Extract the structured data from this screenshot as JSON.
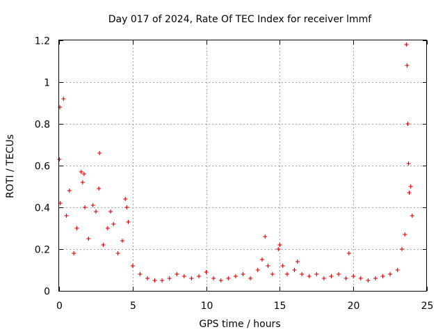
{
  "chart_data": {
    "type": "scatter",
    "title": "Day 017 of 2024, Rate Of TEC Index for receiver lmmf",
    "xlabel": "GPS time / hours",
    "ylabel": "ROTI / TECUs",
    "xlim": [
      0,
      25
    ],
    "ylim": [
      0,
      1.2
    ],
    "xticks": [
      0,
      5,
      10,
      15,
      20,
      25
    ],
    "yticks": [
      0,
      0.2,
      0.4,
      0.6,
      0.8,
      1.0,
      1.2
    ],
    "xtick_labels": [
      "0",
      "5",
      "10",
      "15",
      "20",
      "25"
    ],
    "ytick_labels": [
      "0",
      "0.2",
      "0.4",
      "0.6",
      "0.8",
      "1",
      "1.2"
    ],
    "grid": true,
    "marker": "+",
    "color": "#e00000",
    "series": [
      {
        "name": "ROTI",
        "x": [
          0.02,
          0.05,
          0.08,
          0.3,
          0.5,
          0.7,
          1.0,
          1.2,
          1.5,
          1.6,
          1.7,
          1.75,
          2.0,
          2.3,
          2.5,
          2.7,
          2.75,
          3.0,
          3.3,
          3.5,
          3.7,
          4.0,
          4.3,
          4.5,
          4.6,
          4.7,
          5.0,
          5.5,
          6.0,
          6.5,
          7.0,
          7.5,
          8.0,
          8.5,
          9.0,
          9.5,
          10.0,
          10.5,
          11.0,
          11.5,
          12.0,
          12.5,
          13.0,
          13.5,
          13.8,
          14.0,
          14.2,
          14.5,
          14.9,
          15.0,
          15.2,
          15.5,
          16.0,
          16.2,
          16.5,
          17.0,
          17.5,
          18.0,
          18.5,
          19.0,
          19.5,
          19.7,
          20.0,
          20.5,
          21.0,
          21.5,
          22.0,
          22.5,
          23.0,
          23.3,
          23.5,
          23.6,
          23.65,
          23.7,
          23.75,
          23.8,
          23.9,
          24.0
        ],
        "y": [
          0.63,
          0.88,
          0.42,
          0.92,
          0.36,
          0.48,
          0.18,
          0.3,
          0.57,
          0.52,
          0.56,
          0.4,
          0.25,
          0.41,
          0.38,
          0.49,
          0.66,
          0.22,
          0.3,
          0.38,
          0.32,
          0.18,
          0.24,
          0.44,
          0.4,
          0.33,
          0.12,
          0.08,
          0.06,
          0.05,
          0.05,
          0.06,
          0.08,
          0.07,
          0.06,
          0.07,
          0.09,
          0.06,
          0.05,
          0.06,
          0.07,
          0.08,
          0.06,
          0.1,
          0.15,
          0.26,
          0.12,
          0.08,
          0.2,
          0.22,
          0.12,
          0.08,
          0.1,
          0.14,
          0.08,
          0.07,
          0.08,
          0.06,
          0.07,
          0.08,
          0.06,
          0.18,
          0.07,
          0.06,
          0.05,
          0.06,
          0.07,
          0.08,
          0.1,
          0.2,
          0.27,
          1.18,
          1.08,
          0.8,
          0.61,
          0.47,
          0.5,
          0.36
        ]
      }
    ]
  }
}
